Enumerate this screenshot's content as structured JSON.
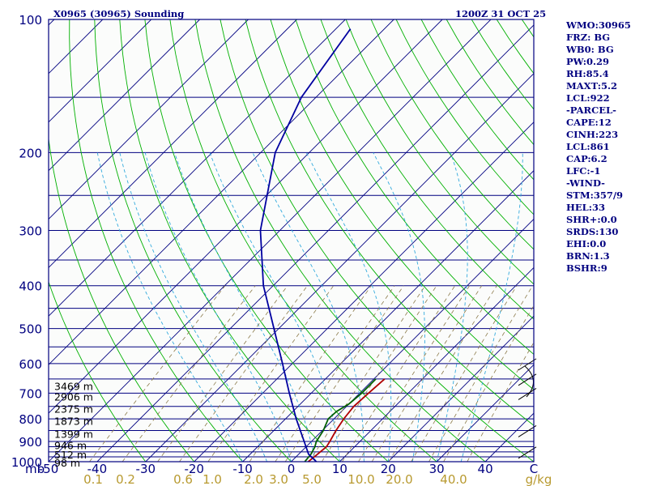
{
  "header": {
    "station": "X0965 (30965) Sounding",
    "time": "1200Z 31 OCT 25"
  },
  "colors": {
    "frame": "#000080",
    "isobar": "#000080",
    "isotherm": "#000080",
    "dry_adiabat": "#00b000",
    "moist_adiabat": "#33aadd",
    "mixing_ratio": "#8b7a4a",
    "temperature": "#b00000",
    "dewpoint": "#006000",
    "parcel": "#0000a0",
    "tick_text": "#000080",
    "mixing_text": "#b89a30",
    "background": "#ffffff",
    "plot_background": "#fbfcfb"
  },
  "chart_data": {
    "type": "skew-t log-p",
    "title": "X0965 (30965) Sounding",
    "time": "1200Z 31 OCT 25",
    "x_axis": {
      "label": "C",
      "range": [
        -50,
        50
      ],
      "ticks": [
        -50,
        -40,
        -30,
        -20,
        -10,
        0,
        10,
        20,
        30,
        40
      ]
    },
    "y_axis": {
      "label": "mb",
      "range": [
        1000,
        100
      ],
      "ticks": [
        100,
        200,
        300,
        400,
        500,
        600,
        700,
        800,
        900,
        1000
      ]
    },
    "isobars": [
      100,
      150,
      200,
      250,
      300,
      350,
      400,
      450,
      500,
      550,
      600,
      650,
      700,
      750,
      800,
      850,
      900,
      925,
      950,
      975,
      1000
    ],
    "mixing_ratio_labels": [
      "0.1",
      "0.2",
      "0.6",
      "1.0",
      "2.0",
      "3.0",
      "5.0",
      "10.0",
      "20.0",
      "40.0",
      "g/kg"
    ],
    "mixing_ratio_values": [
      0.1,
      0.2,
      0.6,
      1.0,
      2.0,
      3.0,
      5.0,
      10.0,
      20.0,
      40.0
    ],
    "height_labels": [
      {
        "p": 674,
        "label": "3469 m"
      },
      {
        "p": 712,
        "label": "2906 m"
      },
      {
        "p": 759,
        "label": "2375 m"
      },
      {
        "p": 808,
        "label": "1873 m"
      },
      {
        "p": 864,
        "label": "1399 m"
      },
      {
        "p": 917,
        "label": "946 m"
      },
      {
        "p": 962,
        "label": "512 m"
      },
      {
        "p": 1004,
        "label": "98 m"
      }
    ],
    "series": [
      {
        "name": "Temperature",
        "points": [
          [
            1000,
            3.5
          ],
          [
            970,
            3.8
          ],
          [
            925,
            4.2
          ],
          [
            900,
            3.8
          ],
          [
            850,
            2.8
          ],
          [
            800,
            2.0
          ],
          [
            750,
            1.5
          ],
          [
            700,
            1.8
          ],
          [
            650,
            2.2
          ]
        ]
      },
      {
        "name": "Dewpoint",
        "points": [
          [
            1000,
            2.8
          ],
          [
            960,
            2.5
          ],
          [
            925,
            1.8
          ],
          [
            900,
            1.0
          ],
          [
            850,
            0.2
          ],
          [
            800,
            -1.2
          ],
          [
            770,
            -1.0
          ],
          [
            740,
            0.0
          ],
          [
            700,
            0.4
          ],
          [
            650,
            0.4
          ]
        ]
      },
      {
        "name": "Parcel",
        "points": [
          [
            1000,
            5.2
          ],
          [
            961,
            2.0
          ],
          [
            900,
            -1.5
          ],
          [
            800,
            -7.8
          ],
          [
            700,
            -14.5
          ],
          [
            600,
            -22
          ],
          [
            500,
            -31
          ],
          [
            400,
            -42
          ],
          [
            300,
            -54
          ],
          [
            200,
            -67
          ],
          [
            150,
            -73
          ],
          [
            105,
            -77
          ]
        ]
      }
    ],
    "indices": [
      "WMO:30965",
      "FRZ: BG",
      "WB0: BG",
      "PW:0.29",
      "RH:85.4",
      "MAXT:5.2",
      "LCL:922",
      "-PARCEL-",
      "CAPE:12",
      "CINH:223",
      "LCL:861",
      "CAP:6.2",
      "LFC:-1",
      "-WIND-",
      "STM:357/9",
      "HEL:33",
      "SHR+:0.0",
      "SRDS:130",
      "EHI:0.0",
      "BRN:1.3",
      "BSHR:9"
    ]
  }
}
